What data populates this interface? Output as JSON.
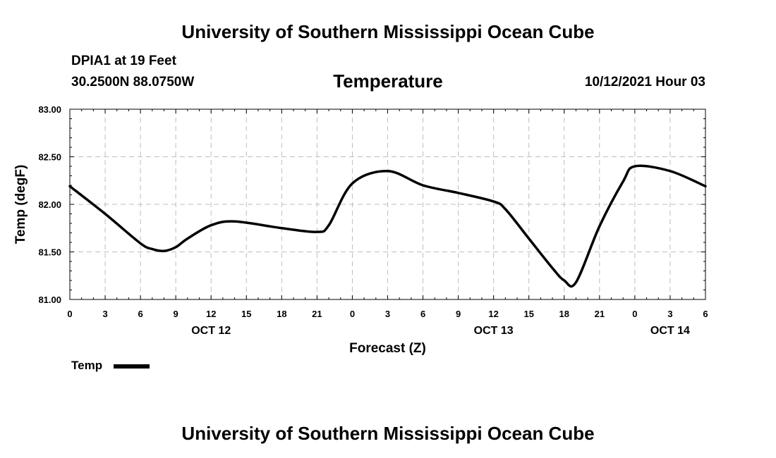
{
  "header": {
    "title_top": "University of Southern Mississippi Ocean Cube",
    "station": "DPIA1 at 19 Feet",
    "coords": "30.2500N  88.0750W",
    "chart_title": "Temperature",
    "datetime": "10/12/2021 Hour 03",
    "title_bottom": "University of Southern Mississippi Ocean Cube"
  },
  "legend": {
    "label": "Temp"
  },
  "chart_data": {
    "type": "line",
    "title": "Temperature",
    "xlabel": "Forecast (Z)",
    "ylabel": "Temp (degF)",
    "ylim": [
      81.0,
      83.0
    ],
    "yticks": [
      "81.00",
      "81.50",
      "82.00",
      "82.50",
      "83.00"
    ],
    "xlim": [
      0,
      54
    ],
    "xtick_labels": [
      "0",
      "3",
      "6",
      "9",
      "12",
      "15",
      "18",
      "21",
      "0",
      "3",
      "6",
      "9",
      "12",
      "15",
      "18",
      "21",
      "0",
      "3",
      "6"
    ],
    "date_labels": [
      {
        "label": "OCT 12",
        "at": 12
      },
      {
        "label": "OCT 13",
        "at": 36
      },
      {
        "label": "OCT 14",
        "at": 51
      }
    ],
    "grid": true,
    "legend_position": "bottom-left",
    "series": [
      {
        "name": "Temp",
        "color": "#000000",
        "x": [
          0,
          3,
          6,
          7,
          8,
          9,
          10,
          12,
          14,
          18,
          21,
          22,
          24,
          27,
          30,
          33,
          36,
          37,
          39,
          41,
          42,
          43,
          45,
          47,
          48,
          51,
          54
        ],
        "y": [
          82.19,
          81.9,
          81.59,
          81.53,
          81.51,
          81.55,
          81.64,
          81.78,
          81.82,
          81.75,
          81.71,
          81.78,
          82.22,
          82.35,
          82.2,
          82.12,
          82.03,
          81.95,
          81.64,
          81.33,
          81.2,
          81.18,
          81.77,
          82.24,
          82.4,
          82.35,
          82.19
        ]
      }
    ]
  }
}
